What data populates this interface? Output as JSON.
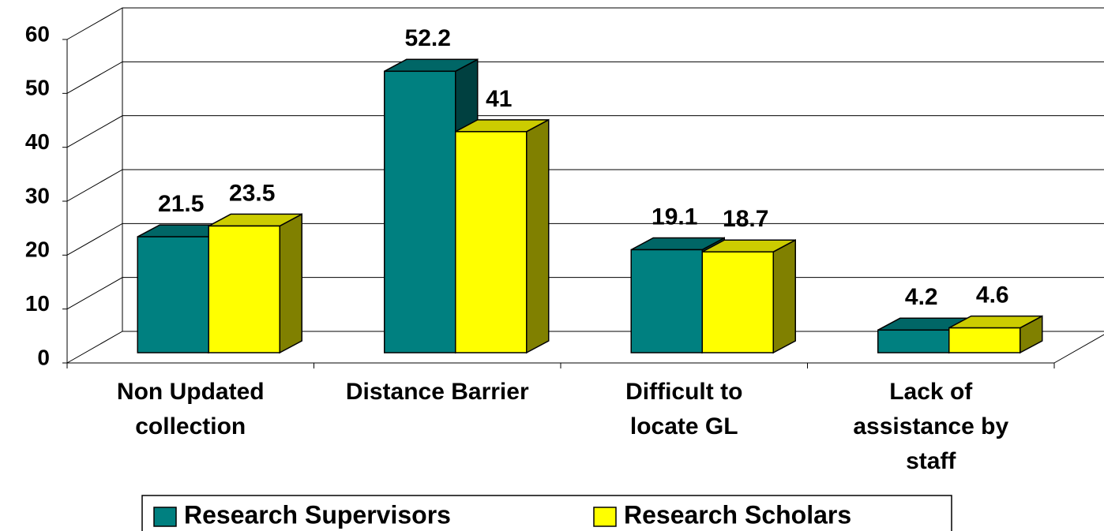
{
  "chart_data": {
    "type": "bar3d",
    "categories": [
      "Non Updated collection",
      "Distance Barrier",
      "Difficult to locate GL",
      "Lack of assistance by staff"
    ],
    "series": [
      {
        "name": "Research Supervisors",
        "color": "#008080",
        "values": [
          21.5,
          52.2,
          19.1,
          4.2
        ]
      },
      {
        "name": "Research Scholars",
        "color": "#ffff00",
        "values": [
          23.5,
          41,
          18.7,
          4.6
        ]
      }
    ],
    "ylim": [
      0,
      60
    ],
    "yticks": [
      0,
      10,
      20,
      30,
      40,
      50,
      60
    ],
    "grid": true,
    "legend": "bottom"
  }
}
